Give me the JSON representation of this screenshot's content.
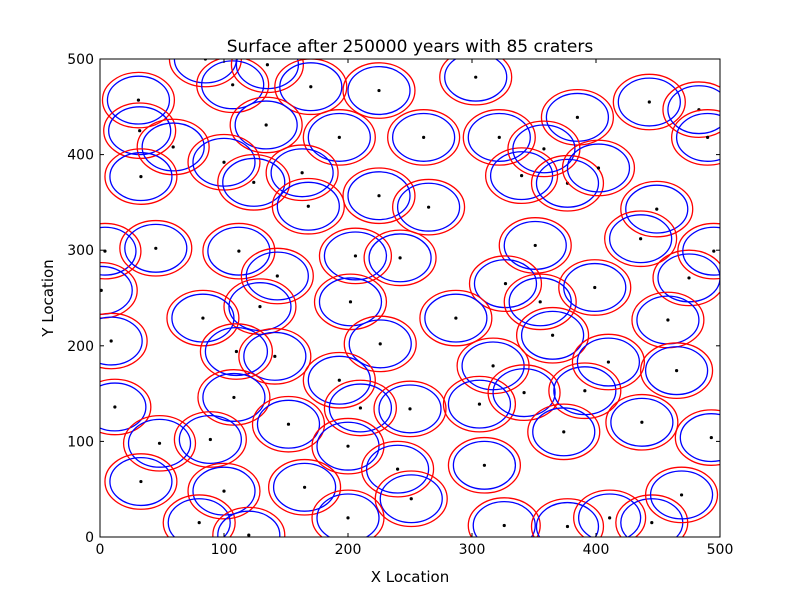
{
  "chart_data": {
    "type": "scatter",
    "title": "Surface after 250000 years with 85 craters",
    "xlabel": "X Location",
    "ylabel": "Y Location",
    "xlim": [
      0,
      500
    ],
    "ylim": [
      0,
      500
    ],
    "xticks": [
      "0",
      "100",
      "200",
      "300",
      "400",
      "500"
    ],
    "yticks": [
      "0",
      "100",
      "200",
      "300",
      "400",
      "500"
    ],
    "grid": false,
    "legend": "none",
    "outer_radius": 29,
    "inner_radius": 25,
    "outer_color": "#ff0000",
    "inner_color": "#0000ff",
    "center_color": "#000000",
    "craters": [
      {
        "x": 85,
        "y": 500
      },
      {
        "x": 107,
        "y": 473
      },
      {
        "x": 135,
        "y": 494
      },
      {
        "x": 170,
        "y": 471
      },
      {
        "x": 225,
        "y": 467
      },
      {
        "x": 303,
        "y": 481
      },
      {
        "x": 31,
        "y": 457
      },
      {
        "x": 32,
        "y": 425
      },
      {
        "x": 59,
        "y": 408
      },
      {
        "x": 134,
        "y": 431
      },
      {
        "x": 193,
        "y": 418
      },
      {
        "x": 261,
        "y": 418
      },
      {
        "x": 322,
        "y": 418
      },
      {
        "x": 385,
        "y": 439
      },
      {
        "x": 443,
        "y": 455
      },
      {
        "x": 483,
        "y": 447
      },
      {
        "x": 490,
        "y": 418
      },
      {
        "x": 33,
        "y": 377
      },
      {
        "x": 100,
        "y": 392
      },
      {
        "x": 124,
        "y": 371
      },
      {
        "x": 163,
        "y": 381
      },
      {
        "x": 168,
        "y": 346
      },
      {
        "x": 225,
        "y": 357
      },
      {
        "x": 265,
        "y": 345
      },
      {
        "x": 340,
        "y": 378
      },
      {
        "x": 358,
        "y": 406
      },
      {
        "x": 377,
        "y": 370
      },
      {
        "x": 402,
        "y": 386
      },
      {
        "x": 449,
        "y": 343
      },
      {
        "x": 436,
        "y": 312
      },
      {
        "x": 4,
        "y": 299
      },
      {
        "x": 45,
        "y": 302
      },
      {
        "x": 112,
        "y": 299
      },
      {
        "x": 143,
        "y": 273
      },
      {
        "x": 129,
        "y": 241
      },
      {
        "x": 206,
        "y": 294
      },
      {
        "x": 242,
        "y": 292
      },
      {
        "x": 202,
        "y": 246
      },
      {
        "x": 351,
        "y": 305
      },
      {
        "x": 327,
        "y": 265
      },
      {
        "x": 355,
        "y": 246
      },
      {
        "x": 399,
        "y": 261
      },
      {
        "x": 475,
        "y": 271
      },
      {
        "x": 495,
        "y": 299
      },
      {
        "x": 1,
        "y": 258
      },
      {
        "x": 9,
        "y": 205
      },
      {
        "x": 83,
        "y": 229
      },
      {
        "x": 110,
        "y": 194
      },
      {
        "x": 141,
        "y": 189
      },
      {
        "x": 226,
        "y": 202
      },
      {
        "x": 287,
        "y": 229
      },
      {
        "x": 365,
        "y": 211
      },
      {
        "x": 458,
        "y": 227
      },
      {
        "x": 12,
        "y": 136
      },
      {
        "x": 108,
        "y": 146
      },
      {
        "x": 193,
        "y": 164
      },
      {
        "x": 210,
        "y": 135
      },
      {
        "x": 250,
        "y": 134
      },
      {
        "x": 317,
        "y": 179
      },
      {
        "x": 306,
        "y": 139
      },
      {
        "x": 342,
        "y": 151
      },
      {
        "x": 391,
        "y": 153
      },
      {
        "x": 410,
        "y": 183
      },
      {
        "x": 465,
        "y": 174
      },
      {
        "x": 48,
        "y": 98
      },
      {
        "x": 89,
        "y": 102
      },
      {
        "x": 152,
        "y": 118
      },
      {
        "x": 200,
        "y": 95
      },
      {
        "x": 240,
        "y": 71
      },
      {
        "x": 310,
        "y": 75
      },
      {
        "x": 374,
        "y": 110
      },
      {
        "x": 437,
        "y": 120
      },
      {
        "x": 493,
        "y": 104
      },
      {
        "x": 33,
        "y": 58
      },
      {
        "x": 100,
        "y": 48
      },
      {
        "x": 165,
        "y": 52
      },
      {
        "x": 251,
        "y": 40
      },
      {
        "x": 80,
        "y": 15
      },
      {
        "x": 120,
        "y": 2
      },
      {
        "x": 200,
        "y": 20
      },
      {
        "x": 326,
        "y": 12
      },
      {
        "x": 377,
        "y": 11
      },
      {
        "x": 411,
        "y": 20
      },
      {
        "x": 445,
        "y": 15
      },
      {
        "x": 469,
        "y": 44
      }
    ]
  }
}
